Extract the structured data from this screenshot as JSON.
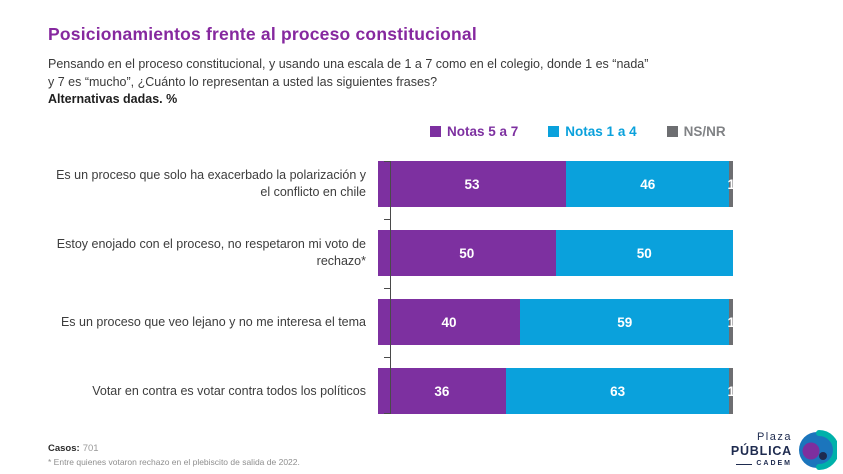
{
  "colors": {
    "title": "#86289f",
    "purple": "#7d30a0",
    "blue": "#0aa1dc",
    "gray": "#6d6e71",
    "legend_gray_text": "#808285",
    "navy": "#1e2b4f"
  },
  "header": {
    "title": "Posicionamientos frente al proceso constitucional",
    "subtitle_line1": "Pensando en el proceso constitucional, y usando una escala de 1 a 7 como en el colegio, donde 1 es “nada”",
    "subtitle_line2": "y 7 es “mucho”, ¿Cuánto lo representan a usted las siguientes frases?",
    "subtitle_bold": "Alternativas dadas. %"
  },
  "legend": [
    {
      "label": "Notas 5 a 7",
      "color": "#7d30a0",
      "text_color": "#7d30a0"
    },
    {
      "label": "Notas 1 a 4",
      "color": "#0aa1dc",
      "text_color": "#0aa1dc"
    },
    {
      "label": "NS/NR",
      "color": "#6d6e71",
      "text_color": "#808285"
    }
  ],
  "chart_data": {
    "type": "bar",
    "orientation": "horizontal",
    "stacked": true,
    "xlim": [
      0,
      100
    ],
    "unit": "%",
    "categories": [
      "Es un proceso que solo ha exacerbado la polarización y el conflicto en chile",
      "Estoy enojado con el proceso, no respetaron mi voto de rechazo*",
      "Es un proceso que veo lejano y no me interesa el tema",
      "Votar en contra es votar contra todos los políticos"
    ],
    "series": [
      {
        "name": "Notas 5 a 7",
        "color": "#7d30a0",
        "values": [
          53,
          50,
          40,
          36
        ]
      },
      {
        "name": "Notas 1 a 4",
        "color": "#0aa1dc",
        "values": [
          46,
          50,
          59,
          63
        ]
      },
      {
        "name": "NS/NR",
        "color": "#6d6e71",
        "values": [
          1,
          0,
          1,
          1
        ]
      }
    ],
    "value_labels": "inside-white"
  },
  "footer": {
    "cases_label": "Casos:",
    "cases_value": "701",
    "footnote": "* Entre quienes votaron rechazo en el plebiscito de salida de 2022."
  },
  "logo": {
    "line1": "Plaza",
    "line2": "PÚBLICA",
    "line3": "CADEM"
  }
}
